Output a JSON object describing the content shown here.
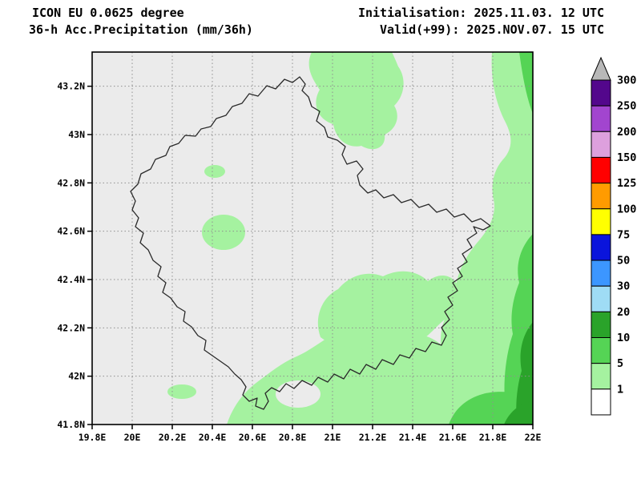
{
  "header": {
    "model_line": "ICON EU 0.0625 degree",
    "product_line": "36-h Acc.Precipitation (mm/36h)",
    "init_line": "Initialisation: 2025.11.03. 12 UTC",
    "valid_line": "Valid(+99): 2025.NOV.07. 15 UTC"
  },
  "map": {
    "region": "Kosovo",
    "x_ticks": [
      "19.8E",
      "20E",
      "20.2E",
      "20.4E",
      "20.6E",
      "20.8E",
      "21E",
      "21.2E",
      "21.4E",
      "21.6E",
      "21.8E",
      "22E"
    ],
    "y_ticks": [
      "41.8N",
      "42N",
      "42.2N",
      "42.4N",
      "42.6N",
      "42.8N",
      "43N",
      "43.2N"
    ],
    "precip_colors": {
      "bg": "#ebebeb",
      "band_1_5": "#a5f2a0",
      "band_5_10": "#55d455",
      "band_10_20": "#2aa32a"
    }
  },
  "legend": {
    "unit": "mm/36h",
    "overflow_color": "#b8b8b8",
    "boundary_labels": [
      "300",
      "250",
      "200",
      "150",
      "125",
      "100",
      "75",
      "50",
      "30",
      "20",
      "10",
      "5",
      "1"
    ],
    "cells": [
      {
        "range": "250-300",
        "color": "#53078c"
      },
      {
        "range": "200-250",
        "color": "#a245cf"
      },
      {
        "range": "150-200",
        "color": "#dda0dd"
      },
      {
        "range": "125-150",
        "color": "#ff0000"
      },
      {
        "range": "100-125",
        "color": "#ff9b00"
      },
      {
        "range": "75-100",
        "color": "#ffff00"
      },
      {
        "range": "50-75",
        "color": "#0a14dc"
      },
      {
        "range": "30-50",
        "color": "#3c96ff"
      },
      {
        "range": "20-30",
        "color": "#9fdcf5"
      },
      {
        "range": "10-20",
        "color": "#2aa32a"
      },
      {
        "range": "5-10",
        "color": "#55d455"
      },
      {
        "range": "1-5",
        "color": "#a5f2a0"
      },
      {
        "range": "<1",
        "color": "#ffffff"
      }
    ]
  }
}
